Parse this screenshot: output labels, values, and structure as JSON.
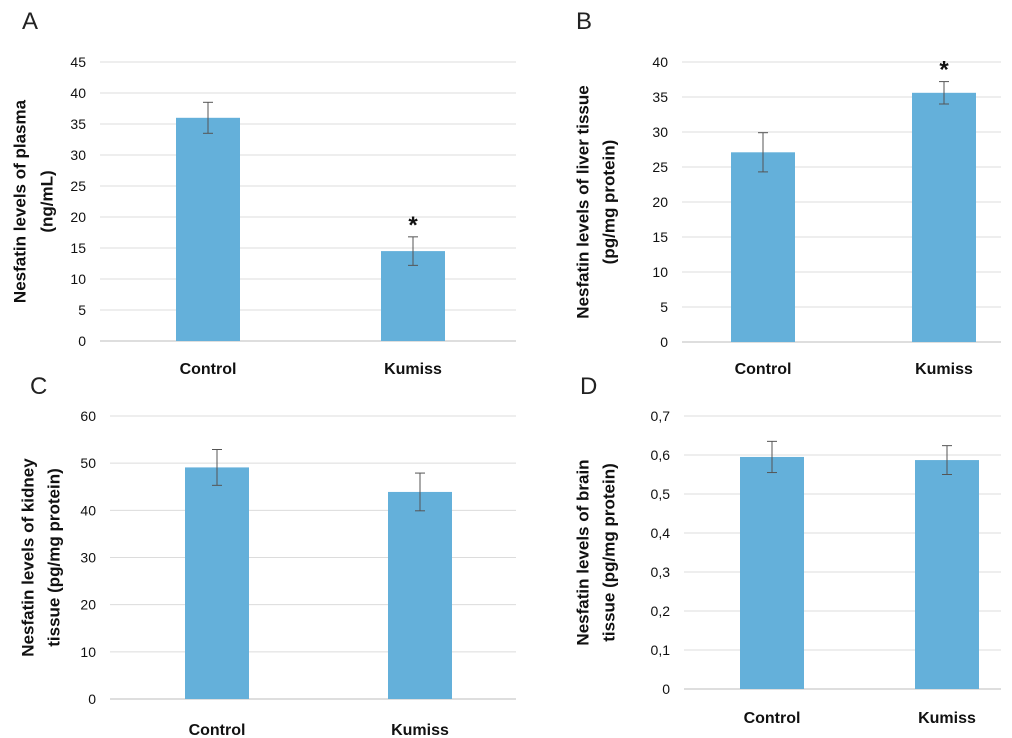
{
  "chart_data": [
    {
      "panel": "A",
      "type": "bar",
      "ylabel": [
        "Nesfatin levels of plasma",
        "(ng/mL)"
      ],
      "categories": [
        "Control",
        "Kumiss"
      ],
      "values": [
        36,
        14.5
      ],
      "errors": [
        2.5,
        2.3
      ],
      "annotations": [
        "",
        "*"
      ],
      "ylim": [
        0,
        45
      ],
      "yticks": [
        "0",
        "5",
        "10",
        "15",
        "20",
        "25",
        "30",
        "35",
        "40",
        "45"
      ],
      "grid": true,
      "color": "#64b0da"
    },
    {
      "panel": "B",
      "type": "bar",
      "ylabel": [
        "Nesfatin levels of liver tissue",
        "(pg/mg protein)"
      ],
      "categories": [
        "Control",
        "Kumiss"
      ],
      "values": [
        27.1,
        35.6
      ],
      "errors": [
        2.8,
        1.6
      ],
      "annotations": [
        "",
        "*"
      ],
      "ylim": [
        0,
        40
      ],
      "yticks": [
        "0",
        "5",
        "10",
        "15",
        "20",
        "25",
        "30",
        "35",
        "40"
      ],
      "grid": true,
      "color": "#64b0da"
    },
    {
      "panel": "C",
      "type": "bar",
      "ylabel": [
        "Nesfatin levels of kidney",
        "tissue (pg/mg protein)"
      ],
      "categories": [
        "Control",
        "Kumiss"
      ],
      "values": [
        49.1,
        43.9
      ],
      "errors": [
        3.8,
        4.0
      ],
      "annotations": [
        "",
        ""
      ],
      "ylim": [
        0,
        60
      ],
      "yticks": [
        "0",
        "10",
        "20",
        "30",
        "40",
        "50",
        "60"
      ],
      "grid": true,
      "color": "#64b0da"
    },
    {
      "panel": "D",
      "type": "bar",
      "ylabel": [
        "Nesfatin levels of brain",
        "tissue (pg/mg protein)"
      ],
      "categories": [
        "Control",
        "Kumiss"
      ],
      "values": [
        0.595,
        0.587
      ],
      "errors": [
        0.04,
        0.037
      ],
      "annotations": [
        "",
        ""
      ],
      "ylim": [
        0,
        0.7
      ],
      "yticks": [
        "0",
        "0,1",
        "0,2",
        "0,3",
        "0,4",
        "0,5",
        "0,6",
        "0,7"
      ],
      "grid": true,
      "color": "#64b0da"
    }
  ]
}
